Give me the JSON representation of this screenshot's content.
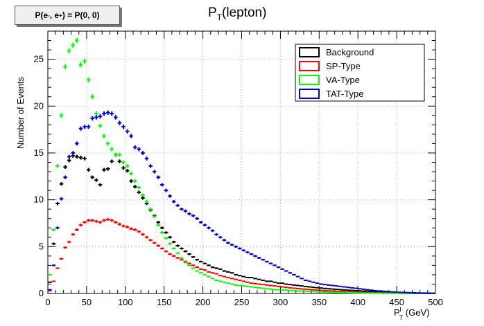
{
  "info_box": {
    "prefix": "P(e",
    "em_sup": "-",
    "mid": ", e",
    "ep_sup": "+",
    "suffix": ") = P(0, 0)"
  },
  "chart_data": {
    "type": "scatter",
    "title_main": "P",
    "title_sub": "T",
    "title_rest": "(lepton)",
    "xlabel_main": "P",
    "xlabel_sup": "l",
    "xlabel_sub": "T",
    "xlabel_rest": " (GeV)",
    "ylabel": "Number of Events",
    "xlim": [
      0,
      500
    ],
    "ylim": [
      0,
      28
    ],
    "xticks": [
      0,
      50,
      100,
      150,
      200,
      250,
      300,
      350,
      400,
      450,
      500
    ],
    "yticks": [
      0,
      5,
      10,
      15,
      20,
      25
    ],
    "grid": true,
    "legend_position": "top-right",
    "x": [
      2.5,
      7.5,
      12.5,
      17.5,
      22.5,
      27.5,
      32.5,
      37.5,
      42.5,
      47.5,
      52.5,
      57.5,
      62.5,
      67.5,
      72.5,
      77.5,
      82.5,
      87.5,
      92.5,
      97.5,
      102.5,
      107.5,
      112.5,
      117.5,
      122.5,
      127.5,
      132.5,
      137.5,
      142.5,
      147.5,
      152.5,
      157.5,
      162.5,
      167.5,
      172.5,
      177.5,
      182.5,
      187.5,
      192.5,
      197.5,
      202.5,
      207.5,
      212.5,
      217.5,
      222.5,
      227.5,
      232.5,
      237.5,
      242.5,
      247.5,
      252.5,
      257.5,
      262.5,
      267.5,
      272.5,
      277.5,
      282.5,
      287.5,
      292.5,
      297.5,
      302.5,
      307.5,
      312.5,
      317.5,
      322.5,
      327.5,
      332.5,
      337.5,
      342.5,
      347.5,
      352.5,
      357.5,
      362.5,
      367.5,
      372.5,
      377.5,
      382.5,
      387.5,
      392.5,
      397.5,
      402.5,
      407.5,
      412.5,
      417.5,
      422.5,
      427.5,
      432.5,
      437.5,
      442.5,
      447.5,
      452.5,
      457.5,
      462.5,
      467.5,
      472.5,
      477.5,
      482.5,
      487.5,
      492.5,
      497.5
    ],
    "series": [
      {
        "name": "Background",
        "color": "#000000",
        "values": [
          1.2,
          5.3,
          9.6,
          11.7,
          13.5,
          14.2,
          14.7,
          14.6,
          14.5,
          14.4,
          13.2,
          12.4,
          12.1,
          11.6,
          13.2,
          13.3,
          14.1,
          14.8,
          14.1,
          13.4,
          13.1,
          12.0,
          11.4,
          10.8,
          10.2,
          9.6,
          8.9,
          8.3,
          7.6,
          7.0,
          6.5,
          6.0,
          5.5,
          5.1,
          4.8,
          4.5,
          4.2,
          3.9,
          3.6,
          3.4,
          3.2,
          3.0,
          2.8,
          2.7,
          2.6,
          2.4,
          2.3,
          2.2,
          2.0,
          1.9,
          1.8,
          1.7,
          1.7,
          1.6,
          1.5,
          1.4,
          1.3,
          1.3,
          1.2,
          1.1,
          1.1,
          1.0,
          0.95,
          0.9,
          0.85,
          0.8,
          0.75,
          0.7,
          0.66,
          0.62,
          0.58,
          0.54,
          0.5,
          0.47,
          0.44,
          0.41,
          0.38,
          0.35,
          0.33,
          0.3,
          0.28,
          0.26,
          0.24,
          0.22,
          0.2,
          0.18,
          0.16,
          0.15,
          0.13,
          0.12,
          0.11,
          0.1,
          0.09,
          0.08,
          0.07,
          0.06,
          0.05,
          0.05,
          0.04,
          0.03
        ]
      },
      {
        "name": "SP-Type",
        "color": "#ff0000",
        "values": [
          0.3,
          1.3,
          2.7,
          3.7,
          4.9,
          5.5,
          6.3,
          6.8,
          7.3,
          7.6,
          7.8,
          7.8,
          7.7,
          7.6,
          7.8,
          7.9,
          7.8,
          7.6,
          7.4,
          7.2,
          7.1,
          6.9,
          6.8,
          6.6,
          6.3,
          6.0,
          5.7,
          5.4,
          5.1,
          4.8,
          4.5,
          4.2,
          4.0,
          3.8,
          3.6,
          3.4,
          3.2,
          3.0,
          2.8,
          2.6,
          2.5,
          2.3,
          2.2,
          2.1,
          1.9,
          1.8,
          1.7,
          1.6,
          1.5,
          1.4,
          1.3,
          1.2,
          1.1,
          1.05,
          1.0,
          0.95,
          0.9,
          0.85,
          0.8,
          0.75,
          0.7,
          0.65,
          0.6,
          0.56,
          0.52,
          0.48,
          0.45,
          0.42,
          0.39,
          0.36,
          0.33,
          0.3,
          0.28,
          0.26,
          0.24,
          0.22,
          0.2,
          0.18,
          0.16,
          0.14,
          0.13,
          0.12,
          0.1,
          0.09,
          0.08,
          0.07,
          0.06,
          0.05,
          0.05,
          0.04,
          0.04,
          0.03,
          0.03,
          0.02,
          0.02,
          0.02,
          0.01,
          0.01,
          0.01,
          0.01
        ]
      },
      {
        "name": "VA-Type",
        "color": "#00ff00",
        "values": [
          2.0,
          6.8,
          13.6,
          19.0,
          24.2,
          25.9,
          26.5,
          27.0,
          24.4,
          24.8,
          22.8,
          21.0,
          19.2,
          17.9,
          16.8,
          16.0,
          15.4,
          14.8,
          14.8,
          14.0,
          13.6,
          12.8,
          12.0,
          11.3,
          10.5,
          9.8,
          9.0,
          8.2,
          7.3,
          6.5,
          5.9,
          5.3,
          4.8,
          4.3,
          3.8,
          3.3,
          3.0,
          2.7,
          2.4,
          2.2,
          2.0,
          1.8,
          1.6,
          1.4,
          1.3,
          1.2,
          1.1,
          1.0,
          0.9,
          0.85,
          0.8,
          0.75,
          0.7,
          0.65,
          0.6,
          0.55,
          0.5,
          0.45,
          0.42,
          0.4,
          0.37,
          0.35,
          0.32,
          0.3,
          0.28,
          0.26,
          0.24,
          0.22,
          0.2,
          0.18,
          0.16,
          0.15,
          0.13,
          0.12,
          0.11,
          0.1,
          0.09,
          0.08,
          0.07,
          0.06,
          0.05,
          0.05,
          0.04,
          0.04,
          0.03,
          0.03,
          0.02,
          0.02,
          0.02,
          0.01,
          0.01,
          0.01,
          0.01,
          0.01,
          0.01,
          0.01,
          0.01,
          0.01,
          0.01,
          0.01
        ]
      },
      {
        "name": "TAT-Type",
        "color": "#0000cc",
        "values": [
          0.4,
          3.0,
          7.0,
          10.1,
          12.4,
          14.6,
          15.0,
          16.0,
          17.6,
          17.8,
          17.8,
          18.7,
          18.8,
          18.9,
          19.2,
          19.3,
          19.2,
          18.8,
          18.2,
          17.8,
          17.3,
          16.8,
          15.6,
          15.4,
          15.0,
          14.4,
          13.6,
          13.0,
          12.4,
          11.6,
          11.0,
          10.4,
          9.8,
          9.4,
          9.0,
          8.8,
          8.5,
          8.3,
          8.0,
          7.6,
          7.3,
          7.0,
          6.7,
          6.3,
          6.0,
          5.7,
          5.4,
          5.2,
          5.0,
          4.8,
          4.6,
          4.4,
          4.2,
          4.0,
          3.8,
          3.6,
          3.4,
          3.2,
          3.0,
          2.8,
          2.6,
          2.4,
          2.2,
          2.0,
          1.8,
          1.6,
          1.4,
          1.3,
          1.2,
          1.1,
          1.0,
          0.95,
          0.9,
          0.85,
          0.8,
          0.75,
          0.7,
          0.65,
          0.6,
          0.55,
          0.5,
          0.45,
          0.4,
          0.35,
          0.3,
          0.27,
          0.24,
          0.21,
          0.18,
          0.15,
          0.13,
          0.11,
          0.09,
          0.07,
          0.05,
          0.04,
          0.03,
          0.02,
          0.01,
          0.01
        ]
      }
    ]
  }
}
